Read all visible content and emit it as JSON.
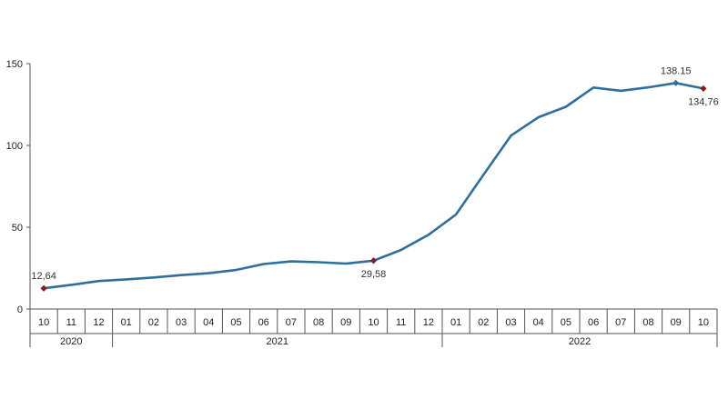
{
  "chart_data": {
    "type": "line",
    "title": "",
    "xlabel": "",
    "ylabel": "",
    "ylim": [
      0,
      150
    ],
    "yticks": [
      0,
      50,
      100,
      150
    ],
    "grid": false,
    "categories": [
      "10",
      "11",
      "12",
      "01",
      "02",
      "03",
      "04",
      "05",
      "06",
      "07",
      "08",
      "09",
      "10",
      "11",
      "12",
      "01",
      "02",
      "03",
      "04",
      "05",
      "06",
      "07",
      "08",
      "09",
      "10"
    ],
    "years": [
      {
        "label": "2020",
        "start": 0,
        "end": 2
      },
      {
        "label": "2021",
        "start": 3,
        "end": 14
      },
      {
        "label": "2022",
        "start": 15,
        "end": 24
      }
    ],
    "series": [
      {
        "color": "#2e6f9e",
        "values": [
          12.64,
          14.8,
          17.1,
          18.1,
          19.3,
          20.7,
          21.9,
          23.9,
          27.5,
          29.1,
          28.6,
          27.8,
          29.58,
          36.1,
          45.4,
          57.8,
          82.1,
          106.0,
          117.2,
          123.6,
          135.4,
          133.4,
          135.5,
          138.15,
          134.76
        ]
      }
    ],
    "data_labels": [
      {
        "index": 0,
        "text": "12,64",
        "color": "#8b1a1a",
        "position": "above"
      },
      {
        "index": 12,
        "text": "29,58",
        "color": "#8b1a1a",
        "position": "below"
      },
      {
        "index": 23,
        "text": "138.15",
        "color": "#2e6f9e",
        "position": "above"
      },
      {
        "index": 24,
        "text": "134,76",
        "color": "#8b1a1a",
        "position": "below"
      }
    ]
  }
}
